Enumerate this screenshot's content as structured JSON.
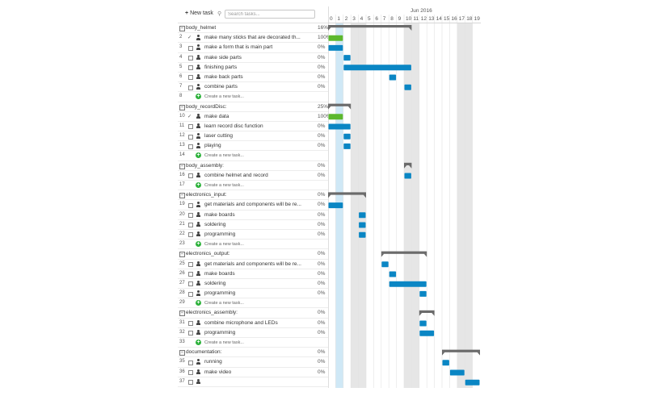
{
  "toolbar": {
    "new_task_label": "New task",
    "search_placeholder": "Search tasks..."
  },
  "timeline": {
    "month_label": "Jun 2016",
    "days": [
      "0",
      "1",
      "2",
      "3",
      "4",
      "5",
      "6",
      "7",
      "8",
      "9",
      "10",
      "11",
      "12",
      "13",
      "14",
      "15",
      "16",
      "17",
      "18",
      "19"
    ],
    "weekend_days": [
      3,
      4,
      10,
      11,
      17,
      18
    ],
    "today_day": 1
  },
  "colors": {
    "bar_pending": "#0a86c4",
    "bar_done": "#5cb82e",
    "summary": "#6b6b6b",
    "weekend": "#e6e6e6",
    "today": "#cfe8f6",
    "create_icon": "#2eb23c"
  },
  "rows": [
    {
      "type": "group",
      "num": "",
      "name": "body_helmet",
      "pct": "16%",
      "start": 0,
      "end": 11
    },
    {
      "type": "task",
      "num": "2",
      "name": "make many sticks  that are decorated th...",
      "pct": "100%",
      "done": true,
      "start": 0,
      "end": 2
    },
    {
      "type": "task",
      "num": "3",
      "name": "make a form that is main part",
      "pct": "0%",
      "done": false,
      "start": 0,
      "end": 2
    },
    {
      "type": "task",
      "num": "4",
      "name": "make side parts",
      "pct": "0%",
      "done": false,
      "start": 2,
      "end": 3
    },
    {
      "type": "task",
      "num": "5",
      "name": "finishing parts",
      "pct": "0%",
      "done": false,
      "start": 2,
      "end": 11
    },
    {
      "type": "task",
      "num": "6",
      "name": "make back parts",
      "pct": "0%",
      "done": false,
      "start": 8,
      "end": 9
    },
    {
      "type": "task",
      "num": "7",
      "name": "combine parts",
      "pct": "0%",
      "done": false,
      "start": 10,
      "end": 11
    },
    {
      "type": "create",
      "num": "8",
      "label": "Create a new task..."
    },
    {
      "type": "group",
      "num": "",
      "name": "body_recordDisc:",
      "pct": "25%",
      "start": 0,
      "end": 3
    },
    {
      "type": "task",
      "num": "10",
      "name": "make data",
      "pct": "100%",
      "done": true,
      "start": 0,
      "end": 2
    },
    {
      "type": "task",
      "num": "11",
      "name": "learn record disc function",
      "pct": "0%",
      "done": false,
      "start": 0,
      "end": 3
    },
    {
      "type": "task",
      "num": "12",
      "name": "laser cutting",
      "pct": "0%",
      "done": false,
      "start": 2,
      "end": 3
    },
    {
      "type": "task",
      "num": "13",
      "name": "playing",
      "pct": "0%",
      "done": false,
      "start": 2,
      "end": 3
    },
    {
      "type": "create",
      "num": "14",
      "label": "Create a new task..."
    },
    {
      "type": "group",
      "num": "",
      "name": "body_assembly:",
      "pct": "0%",
      "start": 10,
      "end": 11
    },
    {
      "type": "task",
      "num": "16",
      "name": "combine helmet and record",
      "pct": "0%",
      "done": false,
      "start": 10,
      "end": 11
    },
    {
      "type": "create",
      "num": "17",
      "label": "Create a new task..."
    },
    {
      "type": "group",
      "num": "",
      "name": "electronics_input:",
      "pct": "0%",
      "start": 0,
      "end": 5
    },
    {
      "type": "task",
      "num": "19",
      "name": "get materials and components will be re...",
      "pct": "0%",
      "done": false,
      "start": 0,
      "end": 2
    },
    {
      "type": "task",
      "num": "20",
      "name": "make boards",
      "pct": "0%",
      "done": false,
      "start": 4,
      "end": 5
    },
    {
      "type": "task",
      "num": "21",
      "name": "soldering",
      "pct": "0%",
      "done": false,
      "start": 4,
      "end": 5
    },
    {
      "type": "task",
      "num": "22",
      "name": "programming",
      "pct": "0%",
      "done": false,
      "start": 4,
      "end": 5
    },
    {
      "type": "create",
      "num": "23",
      "label": "Create a new task..."
    },
    {
      "type": "group",
      "num": "",
      "name": "electronics_output:",
      "pct": "0%",
      "start": 7,
      "end": 13
    },
    {
      "type": "task",
      "num": "25",
      "name": "get materials and components will be re...",
      "pct": "0%",
      "done": false,
      "start": 7,
      "end": 8
    },
    {
      "type": "task",
      "num": "26",
      "name": "make boards",
      "pct": "0%",
      "done": false,
      "start": 8,
      "end": 9
    },
    {
      "type": "task",
      "num": "27",
      "name": "soldering",
      "pct": "0%",
      "done": false,
      "start": 8,
      "end": 13
    },
    {
      "type": "task",
      "num": "28",
      "name": "programming",
      "pct": "0%",
      "done": false,
      "start": 12,
      "end": 13
    },
    {
      "type": "create",
      "num": "29",
      "label": "Create a new task..."
    },
    {
      "type": "group",
      "num": "",
      "name": "electronics_assembly:",
      "pct": "0%",
      "start": 12,
      "end": 14
    },
    {
      "type": "task",
      "num": "31",
      "name": "combine microphone and LEDs",
      "pct": "0%",
      "done": false,
      "start": 12,
      "end": 13
    },
    {
      "type": "task",
      "num": "32",
      "name": "programming",
      "pct": "0%",
      "done": false,
      "start": 12,
      "end": 14
    },
    {
      "type": "create",
      "num": "33",
      "label": "Create a new task..."
    },
    {
      "type": "group",
      "num": "",
      "name": "documentation:",
      "pct": "0%",
      "start": 15,
      "end": 20
    },
    {
      "type": "task",
      "num": "35",
      "name": "running",
      "pct": "0%",
      "done": false,
      "start": 15,
      "end": 16
    },
    {
      "type": "task",
      "num": "36",
      "name": "make video",
      "pct": "0%",
      "done": false,
      "start": 16,
      "end": 18
    },
    {
      "type": "task",
      "num": "37",
      "name": "",
      "pct": "",
      "done": false,
      "start": 18,
      "end": 20
    }
  ]
}
